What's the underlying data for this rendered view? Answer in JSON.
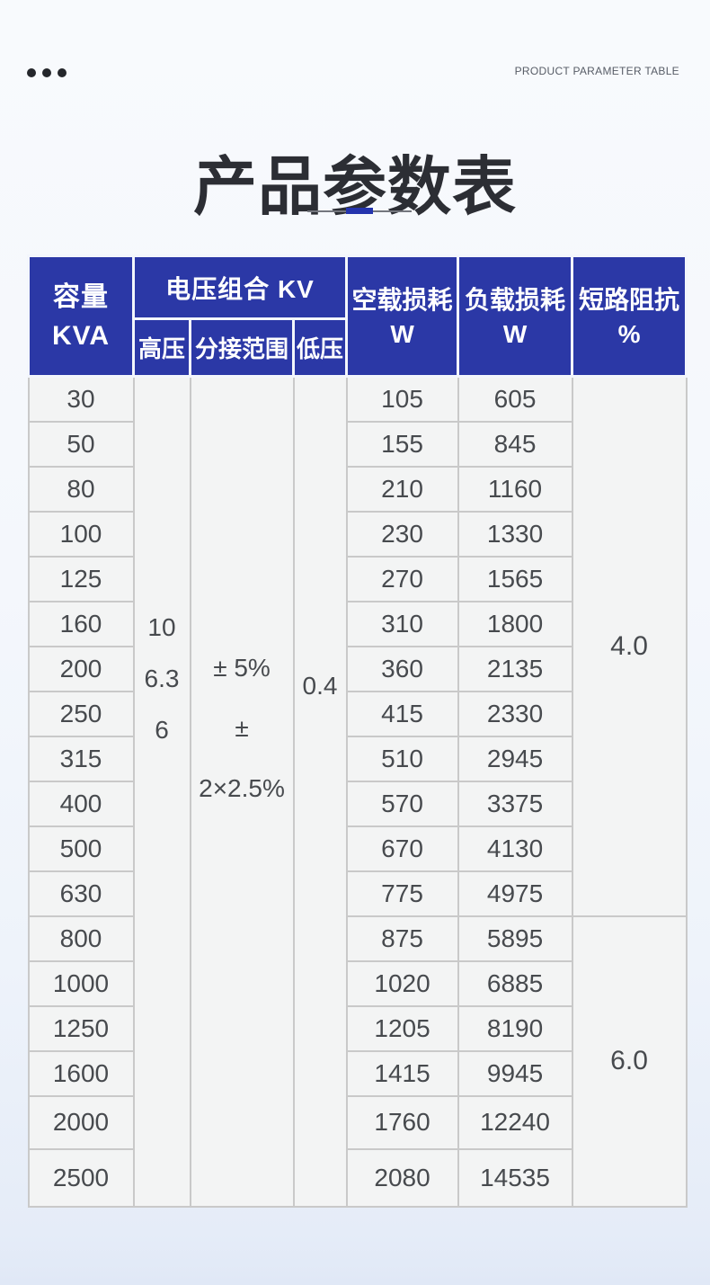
{
  "page": {
    "eyebrow": "PRODUCT PARAMETER TABLE",
    "title": "产品参数表"
  },
  "table": {
    "columns": {
      "capacity_line1": "容量",
      "capacity_line2": "KVA",
      "voltage_group": "电压组合 KV",
      "high_voltage": "高压",
      "tap_range": "分接范围",
      "low_voltage": "低压",
      "no_load_loss_line1": "空载损耗",
      "no_load_loss_line2": "W",
      "load_loss_line1": "负载损耗",
      "load_loss_line2": "W",
      "impedance_line1": "短路阻抗",
      "impedance_line2": "%"
    },
    "shared_values": {
      "high_voltage": [
        "10",
        "6.3",
        "6"
      ],
      "tap_range": [
        "± 5%",
        "± 2×2.5%"
      ],
      "low_voltage": "0.4"
    },
    "rows": [
      {
        "capacity": "30",
        "no_load_loss": "105",
        "load_loss": "605"
      },
      {
        "capacity": "50",
        "no_load_loss": "155",
        "load_loss": "845"
      },
      {
        "capacity": "80",
        "no_load_loss": "210",
        "load_loss": "1160"
      },
      {
        "capacity": "100",
        "no_load_loss": "230",
        "load_loss": "1330"
      },
      {
        "capacity": "125",
        "no_load_loss": "270",
        "load_loss": "1565"
      },
      {
        "capacity": "160",
        "no_load_loss": "310",
        "load_loss": "1800"
      },
      {
        "capacity": "200",
        "no_load_loss": "360",
        "load_loss": "2135"
      },
      {
        "capacity": "250",
        "no_load_loss": "415",
        "load_loss": "2330"
      },
      {
        "capacity": "315",
        "no_load_loss": "510",
        "load_loss": "2945"
      },
      {
        "capacity": "400",
        "no_load_loss": "570",
        "load_loss": "3375"
      },
      {
        "capacity": "500",
        "no_load_loss": "670",
        "load_loss": "4130"
      },
      {
        "capacity": "630",
        "no_load_loss": "775",
        "load_loss": "4975"
      },
      {
        "capacity": "800",
        "no_load_loss": "875",
        "load_loss": "5895"
      },
      {
        "capacity": "1000",
        "no_load_loss": "1020",
        "load_loss": "6885"
      },
      {
        "capacity": "1250",
        "no_load_loss": "1205",
        "load_loss": "8190"
      },
      {
        "capacity": "1600",
        "no_load_loss": "1415",
        "load_loss": "9945"
      },
      {
        "capacity": "2000",
        "no_load_loss": "1760",
        "load_loss": "12240"
      },
      {
        "capacity": "2500",
        "no_load_loss": "2080",
        "load_loss": "14535"
      }
    ],
    "impedance_groups": [
      {
        "value": "4.0",
        "row_span": 12
      },
      {
        "value": "6.0",
        "row_span": 6
      }
    ]
  },
  "colors": {
    "header_blue": "#2b38a6",
    "accent_blue": "#2434ad",
    "divider_gray": "#74777e",
    "cell_background": "#f3f4f4",
    "cell_border": "#c9c9c9",
    "body_text": "#474a4e"
  }
}
